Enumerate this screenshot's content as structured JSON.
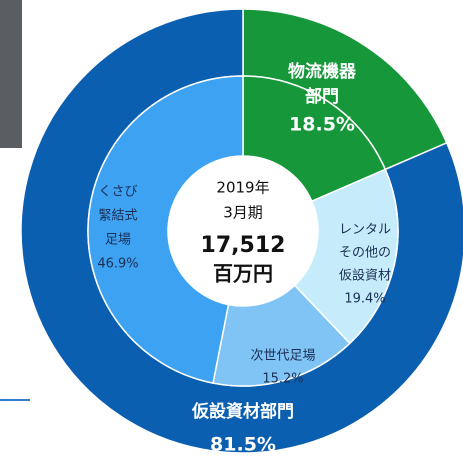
{
  "chart_data": {
    "type": "donut",
    "center": [
      "2019年",
      "3月期",
      "17,512",
      "百万円"
    ],
    "rings": [
      {
        "name": "outer",
        "categories": [
          [
            "物流機器",
            "部門"
          ],
          [
            "仮設資材部門"
          ]
        ],
        "values": [
          18.5,
          81.5
        ],
        "value_labels": [
          "18.5%",
          "81.5%"
        ],
        "colors": [
          "#16983a",
          "#0b5fb0"
        ]
      },
      {
        "name": "inner",
        "categories": [
          null,
          [
            "レンタル",
            "その他の",
            "仮設資材"
          ],
          [
            "次世代足場"
          ],
          [
            "くさび",
            "緊結式",
            "足場"
          ]
        ],
        "values": [
          18.5,
          19.4,
          15.2,
          46.9
        ],
        "value_labels": [
          null,
          "19.4%",
          "15.2%",
          "46.9%"
        ],
        "colors": [
          "#16983a",
          "#c6ecfb",
          "#80c4f6",
          "#3da2f2"
        ]
      }
    ]
  }
}
